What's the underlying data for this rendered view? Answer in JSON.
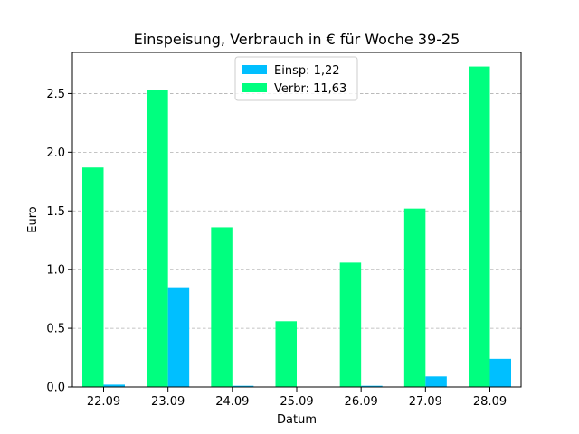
{
  "chart_data": {
    "type": "bar",
    "title": "Einspeisung, Verbrauch in € für Woche 39-25",
    "xlabel": "Datum",
    "ylabel": "Euro",
    "categories": [
      "22.09",
      "23.09",
      "24.09",
      "25.09",
      "26.09",
      "27.09",
      "28.09"
    ],
    "series": [
      {
        "name": "Verbr: 11,63",
        "color": "#00ff7f",
        "values": [
          1.87,
          2.53,
          1.36,
          0.56,
          1.06,
          1.52,
          2.73
        ]
      },
      {
        "name": "Einsp: 1,22",
        "color": "#00bfff",
        "values": [
          0.02,
          0.85,
          0.01,
          0.0,
          0.01,
          0.09,
          0.24
        ]
      }
    ],
    "legend_order": [
      1,
      0
    ],
    "ylim": [
      0,
      2.85
    ],
    "yticks": [
      0.0,
      0.5,
      1.0,
      1.5,
      2.0,
      2.5
    ],
    "ytick_labels": [
      "0.0",
      "0.5",
      "1.0",
      "1.5",
      "2.0",
      "2.5"
    ],
    "grid": {
      "axis": "y",
      "style": "dashed",
      "color": "#b0b0b0"
    },
    "legend_position": "upper center"
  }
}
